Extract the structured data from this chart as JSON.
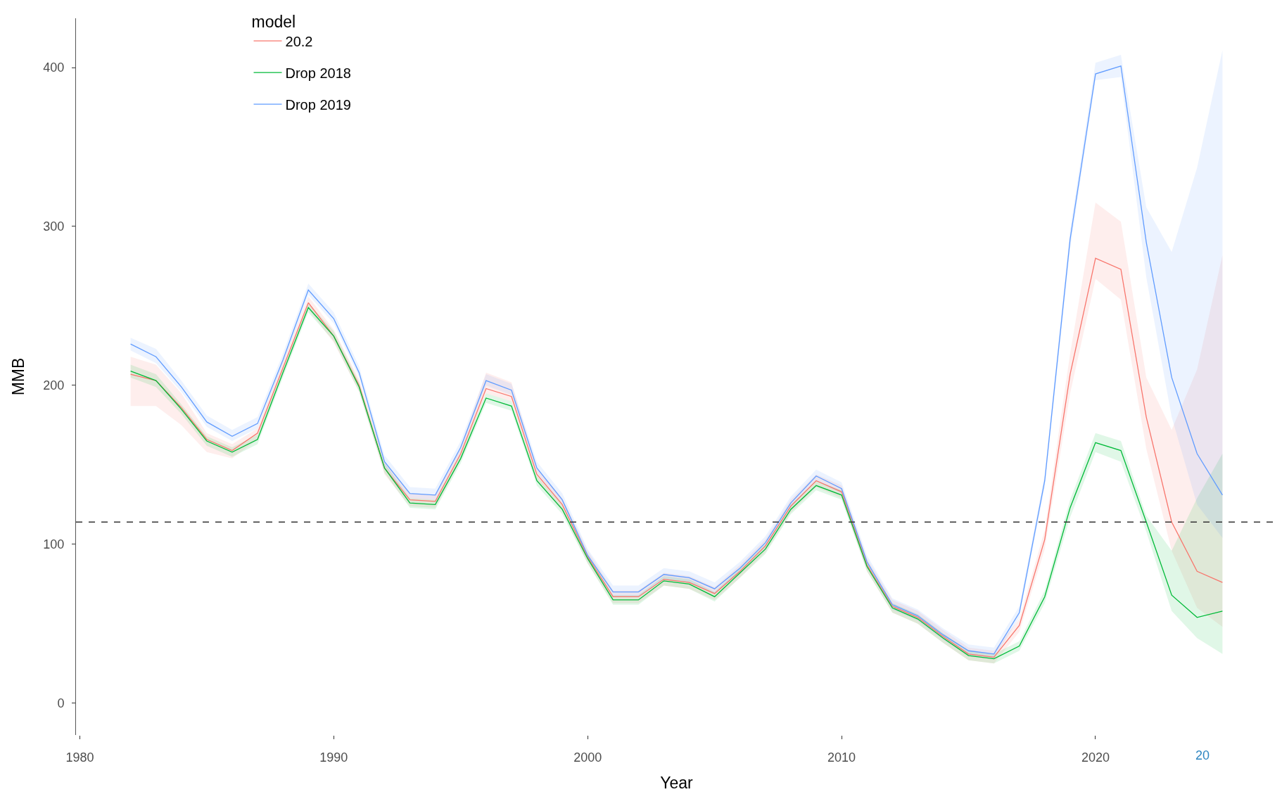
{
  "chart_data": {
    "type": "line",
    "xlabel": "Year",
    "ylabel": "MMB",
    "legend_title": "model",
    "legend": "top left",
    "grid": false,
    "x": [
      1982,
      1983,
      1984,
      1985,
      1986,
      1987,
      1988,
      1989,
      1990,
      1991,
      1992,
      1993,
      1994,
      1995,
      1996,
      1997,
      1998,
      1999,
      2000,
      2001,
      2002,
      2003,
      2004,
      2005,
      2006,
      2007,
      2008,
      2009,
      2010,
      2011,
      2012,
      2013,
      2014,
      2015,
      2016,
      2017,
      2018,
      2019,
      2020,
      2021,
      2022,
      2023,
      2024,
      2025
    ],
    "xlim": [
      1979.85,
      2027.15
    ],
    "ylim": [
      -20,
      431
    ],
    "xticks": [
      1980,
      1990,
      2000,
      2010,
      2020
    ],
    "yticks": [
      0,
      100,
      200,
      300,
      400
    ],
    "series": [
      {
        "name": "20.2",
        "color": "#f8766d",
        "values": [
          207,
          203,
          186,
          166,
          159,
          170,
          211,
          252,
          231,
          200,
          148,
          128,
          127,
          157,
          198,
          193,
          144,
          125,
          92,
          67,
          67,
          78,
          76,
          69,
          83,
          99,
          124,
          140,
          133,
          87,
          61,
          54,
          42,
          31,
          29,
          49,
          103,
          207,
          280,
          273,
          180,
          114,
          83,
          76
        ],
        "lower": [
          187,
          187,
          175,
          158,
          154,
          166,
          207,
          248,
          227,
          196,
          144,
          124,
          123,
          153,
          195,
          190,
          140,
          121,
          88,
          63,
          63,
          74,
          72,
          65,
          79,
          95,
          120,
          136,
          129,
          83,
          57,
          50,
          38,
          27,
          25,
          45,
          97,
          195,
          267,
          254,
          160,
          96,
          60,
          48
        ],
        "upper": [
          218,
          213,
          195,
          170,
          163,
          173,
          215,
          256,
          235,
          204,
          152,
          132,
          131,
          161,
          208,
          202,
          148,
          129,
          96,
          71,
          71,
          82,
          80,
          73,
          87,
          103,
          128,
          144,
          137,
          91,
          65,
          58,
          46,
          35,
          33,
          53,
          109,
          220,
          315,
          303,
          205,
          172,
          210,
          282
        ]
      },
      {
        "name": "Drop 2018",
        "color": "#00ba38",
        "values": [
          209,
          203,
          185,
          165,
          158,
          166,
          208,
          249,
          231,
          199,
          148,
          126,
          125,
          154,
          192,
          187,
          140,
          122,
          91,
          65,
          65,
          77,
          75,
          67,
          82,
          97,
          122,
          137,
          131,
          86,
          60,
          53,
          41,
          30,
          28,
          36,
          67,
          123,
          164,
          159,
          114,
          68,
          54,
          58
        ],
        "lower": [
          205,
          199,
          182,
          162,
          155,
          163,
          205,
          246,
          228,
          196,
          145,
          123,
          122,
          151,
          189,
          184,
          137,
          119,
          88,
          62,
          62,
          74,
          72,
          64,
          79,
          94,
          119,
          134,
          128,
          83,
          57,
          50,
          38,
          27,
          25,
          33,
          63,
          117,
          158,
          152,
          108,
          58,
          41,
          31
        ],
        "upper": [
          213,
          207,
          188,
          168,
          161,
          169,
          211,
          252,
          234,
          202,
          151,
          129,
          128,
          157,
          195,
          190,
          143,
          125,
          94,
          68,
          68,
          80,
          78,
          70,
          85,
          100,
          125,
          140,
          134,
          89,
          63,
          56,
          44,
          33,
          31,
          39,
          71,
          128,
          170,
          165,
          118,
          96,
          129,
          157
        ]
      },
      {
        "name": "Drop 2019",
        "color": "#619cff",
        "values": [
          226,
          218,
          199,
          177,
          168,
          176,
          216,
          260,
          242,
          208,
          152,
          132,
          131,
          161,
          203,
          197,
          148,
          128,
          93,
          70,
          70,
          81,
          79,
          72,
          85,
          101,
          126,
          143,
          135,
          89,
          62,
          55,
          43,
          33,
          31,
          57,
          140,
          292,
          396,
          401,
          290,
          205,
          157,
          131
        ],
        "lower": [
          222,
          214,
          196,
          174,
          165,
          173,
          213,
          257,
          239,
          205,
          149,
          129,
          128,
          158,
          200,
          194,
          145,
          125,
          90,
          67,
          67,
          78,
          76,
          69,
          82,
          98,
          123,
          140,
          132,
          86,
          59,
          52,
          40,
          30,
          28,
          54,
          136,
          286,
          392,
          394,
          268,
          180,
          125,
          104
        ],
        "upper": [
          230,
          223,
          203,
          181,
          172,
          180,
          220,
          264,
          246,
          212,
          156,
          136,
          135,
          165,
          207,
          201,
          152,
          132,
          97,
          74,
          74,
          85,
          83,
          76,
          89,
          105,
          130,
          147,
          139,
          93,
          66,
          59,
          47,
          37,
          35,
          61,
          144,
          298,
          403,
          408,
          312,
          284,
          337,
          411
        ]
      }
    ],
    "ref_lines": [
      {
        "axis": "y",
        "value": 114,
        "line_style": "dashed",
        "color": "#333333"
      }
    ],
    "annotations": [
      "20"
    ]
  }
}
